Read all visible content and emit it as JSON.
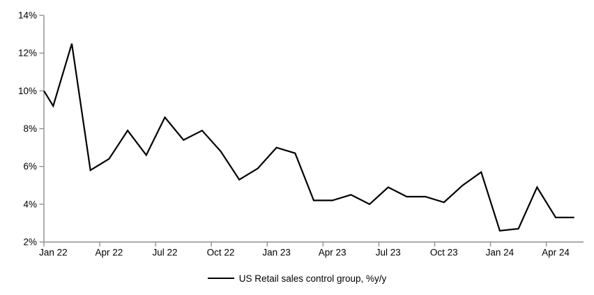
{
  "chart_data": {
    "type": "line",
    "title": "",
    "categories": [
      "Jan 22",
      "Feb 22",
      "Mar 22",
      "Apr 22",
      "May 22",
      "Jun 22",
      "Jul 22",
      "Aug 22",
      "Sep 22",
      "Oct 22",
      "Nov 22",
      "Dec 22",
      "Jan 23",
      "Feb 23",
      "Mar 23",
      "Apr 23",
      "May 23",
      "Jun 23",
      "Jul 23",
      "Aug 23",
      "Sep 23",
      "Oct 23",
      "Nov 23",
      "Dec 23",
      "Jan 24",
      "Feb 24",
      "Mar 24",
      "Apr 24",
      "May 24"
    ],
    "series": [
      {
        "name": "US Retail sales control group, %y/y",
        "color": "#000000",
        "values": [
          9.2,
          12.5,
          5.8,
          6.4,
          7.9,
          6.6,
          8.6,
          7.4,
          7.9,
          6.8,
          5.3,
          5.9,
          7.0,
          6.7,
          4.2,
          4.2,
          4.5,
          4.0,
          4.9,
          4.4,
          4.4,
          4.1,
          5.0,
          5.7,
          2.6,
          2.7,
          4.9,
          3.3,
          3.3
        ]
      }
    ],
    "left_edge_entry_value": 10.0,
    "xlabel": "",
    "ylabel": "",
    "ylim": [
      2,
      14
    ],
    "y_tick_values": [
      2,
      4,
      6,
      8,
      10,
      12,
      14
    ],
    "y_tick_labels": [
      "2%",
      "4%",
      "6%",
      "8%",
      "10%",
      "12%",
      "14%"
    ],
    "x_tick_labels": [
      "Jan 22",
      "Apr 22",
      "Jul 22",
      "Oct 22",
      "Jan 23",
      "Apr 23",
      "Jul 23",
      "Oct 23",
      "Jan 24",
      "Apr 24"
    ],
    "x_tick_every": 3,
    "grid": false,
    "legend_position": "bottom-center",
    "axis_color": "#8f8f8f",
    "text_color": "#000000",
    "line_width": 2.2
  }
}
